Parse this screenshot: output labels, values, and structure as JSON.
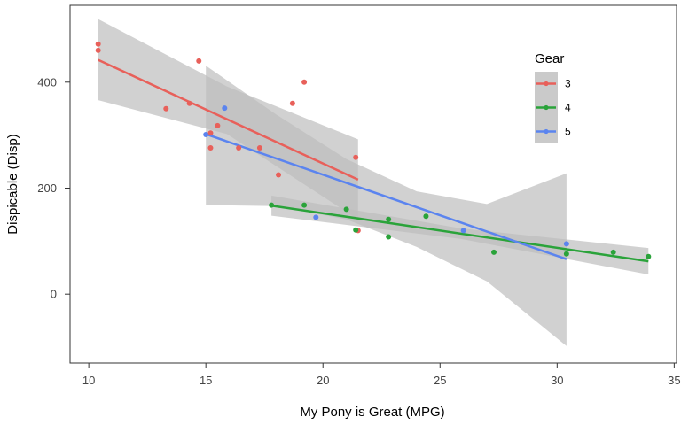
{
  "chart_data": {
    "type": "scatter",
    "title": "",
    "xlabel": "My Pony is Great (MPG)",
    "ylabel": "Dispicable (Disp)",
    "xlim": [
      9.2,
      35.1
    ],
    "ylim": [
      -130,
      545
    ],
    "xticks": [
      10,
      15,
      20,
      25,
      30,
      35
    ],
    "yticks": [
      0,
      200,
      400
    ],
    "grid": false,
    "legend": {
      "title": "Gear",
      "position": "top-right"
    },
    "band_color": "#bdbdbd",
    "series": [
      {
        "name": "3",
        "color": "#e8605a",
        "points": [
          [
            10.4,
            472
          ],
          [
            10.4,
            460
          ],
          [
            13.3,
            350
          ],
          [
            14.3,
            360
          ],
          [
            14.7,
            440
          ],
          [
            15.2,
            304
          ],
          [
            15.2,
            276
          ],
          [
            15.5,
            318
          ],
          [
            16.4,
            276
          ],
          [
            17.3,
            276
          ],
          [
            18.1,
            225
          ],
          [
            18.7,
            360
          ],
          [
            19.2,
            400
          ],
          [
            21.4,
            258
          ],
          [
            21.5,
            120
          ]
        ],
        "fit": {
          "x": [
            10.4,
            21.5
          ],
          "y": [
            442,
            216
          ]
        },
        "band": [
          [
            10.4,
            519,
            366
          ],
          [
            15.9,
            392,
            302
          ],
          [
            21.5,
            292,
            141
          ]
        ]
      },
      {
        "name": "4",
        "color": "#2aa33a",
        "points": [
          [
            17.8,
            168
          ],
          [
            19.2,
            168
          ],
          [
            21.0,
            160
          ],
          [
            21.4,
            121
          ],
          [
            22.8,
            108
          ],
          [
            22.8,
            141
          ],
          [
            24.4,
            147
          ],
          [
            27.3,
            79
          ],
          [
            30.4,
            76
          ],
          [
            32.4,
            79
          ],
          [
            33.9,
            71
          ]
        ],
        "fit": {
          "x": [
            17.8,
            33.9
          ],
          "y": [
            167,
            62
          ]
        },
        "band": [
          [
            17.8,
            186,
            148
          ],
          [
            25.9,
            124,
            104
          ],
          [
            33.9,
            87,
            37
          ]
        ]
      },
      {
        "name": "5",
        "color": "#5b84ef",
        "points": [
          [
            15.0,
            301
          ],
          [
            15.8,
            351
          ],
          [
            19.7,
            145
          ],
          [
            26.0,
            120
          ],
          [
            30.4,
            95
          ]
        ],
        "fit": {
          "x": [
            15.0,
            30.4
          ],
          "y": [
            302,
            66
          ]
        },
        "band": [
          [
            15.0,
            431,
            168
          ],
          [
            18.0,
            339,
            166
          ],
          [
            21.0,
            255,
            141
          ],
          [
            24.0,
            194,
            89
          ],
          [
            27.0,
            170,
            24
          ],
          [
            30.4,
            228,
            -98
          ]
        ]
      }
    ]
  }
}
